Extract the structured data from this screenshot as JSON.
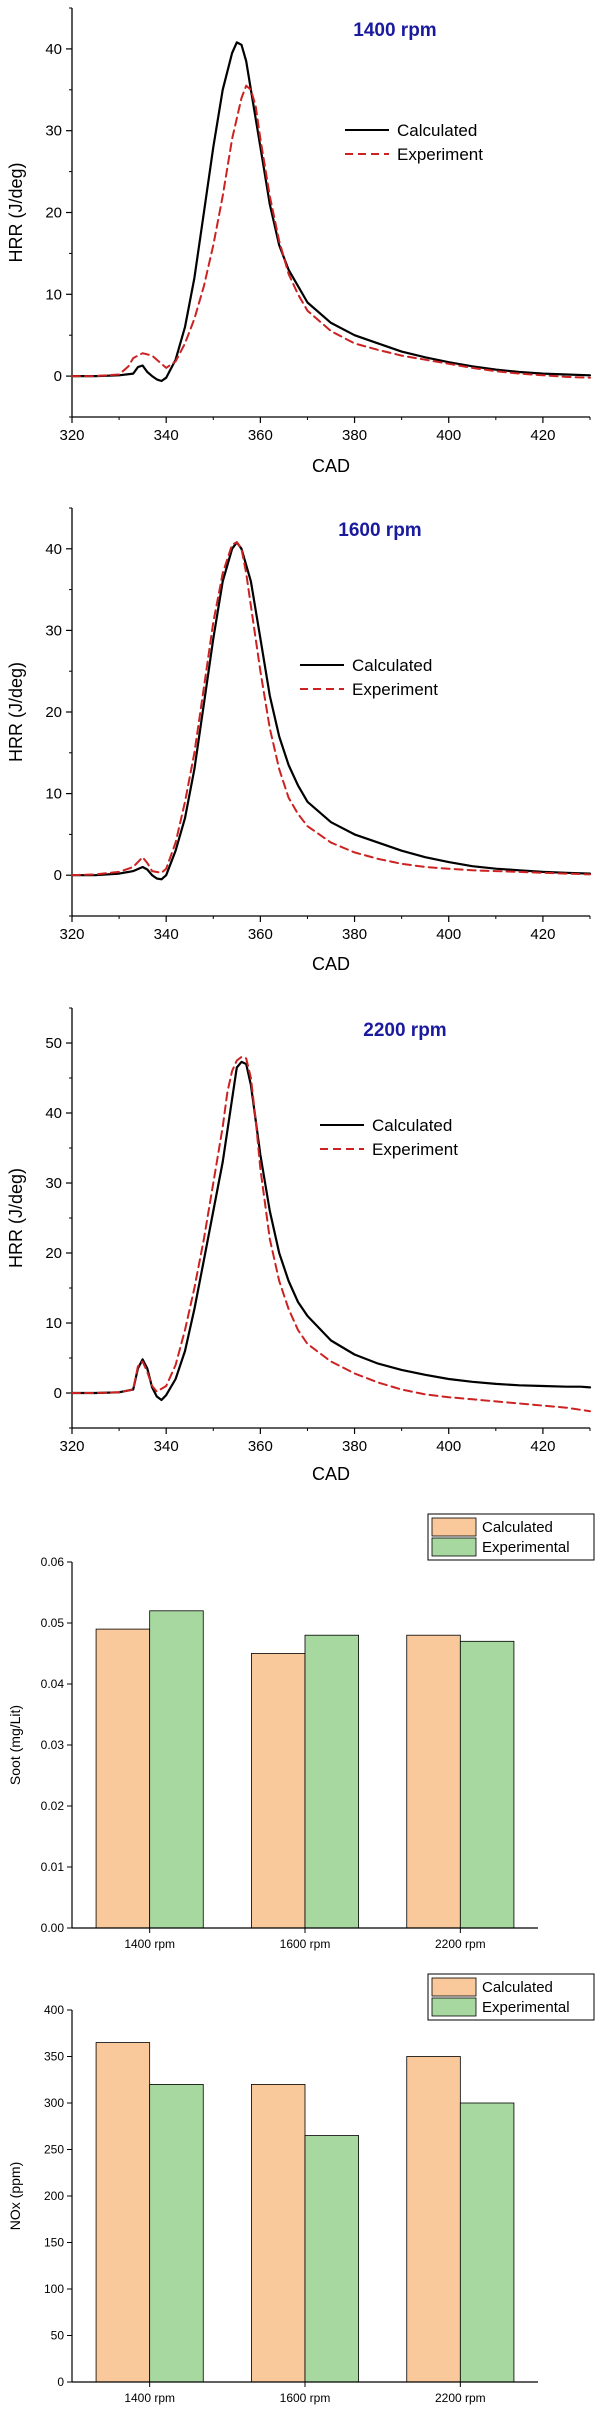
{
  "chart_data": [
    {
      "type": "line",
      "title": "1400 rpm",
      "xlabel": "CAD",
      "ylabel": "HRR (J/deg)",
      "xlim": [
        320,
        430
      ],
      "ylim": [
        -5,
        45
      ],
      "xticks": [
        320,
        340,
        360,
        380,
        400,
        420
      ],
      "yticks": [
        0,
        10,
        20,
        30,
        40
      ],
      "legend_position": "upper-right",
      "series": [
        {
          "name": "Calculated",
          "style": "solid",
          "color": "#000000",
          "points": [
            [
              320,
              0
            ],
            [
              325,
              0
            ],
            [
              330,
              0.1
            ],
            [
              333,
              0.3
            ],
            [
              334,
              1.1
            ],
            [
              335,
              1.3
            ],
            [
              336,
              0.5
            ],
            [
              337,
              0
            ],
            [
              338,
              -0.4
            ],
            [
              339,
              -0.6
            ],
            [
              340,
              -0.2
            ],
            [
              342,
              2
            ],
            [
              344,
              6
            ],
            [
              346,
              12
            ],
            [
              348,
              20
            ],
            [
              350,
              28
            ],
            [
              352,
              35
            ],
            [
              354,
              39.5
            ],
            [
              355,
              40.8
            ],
            [
              356,
              40.5
            ],
            [
              357,
              38.5
            ],
            [
              358,
              35
            ],
            [
              360,
              28
            ],
            [
              362,
              21
            ],
            [
              364,
              16
            ],
            [
              366,
              13
            ],
            [
              368,
              11
            ],
            [
              370,
              9
            ],
            [
              375,
              6.5
            ],
            [
              380,
              5
            ],
            [
              385,
              4
            ],
            [
              390,
              3
            ],
            [
              395,
              2.3
            ],
            [
              400,
              1.7
            ],
            [
              405,
              1.2
            ],
            [
              410,
              0.8
            ],
            [
              415,
              0.5
            ],
            [
              420,
              0.3
            ],
            [
              425,
              0.2
            ],
            [
              430,
              0.1
            ]
          ]
        },
        {
          "name": "Experiment",
          "style": "dashed",
          "color": "#cc2222",
          "points": [
            [
              320,
              0
            ],
            [
              325,
              0
            ],
            [
              330,
              0.2
            ],
            [
              332,
              1.2
            ],
            [
              333,
              2.2
            ],
            [
              335,
              2.8
            ],
            [
              337,
              2.5
            ],
            [
              339,
              1.5
            ],
            [
              340,
              1
            ],
            [
              342,
              1.8
            ],
            [
              344,
              4
            ],
            [
              346,
              7
            ],
            [
              348,
              11
            ],
            [
              350,
              16
            ],
            [
              352,
              22
            ],
            [
              354,
              29
            ],
            [
              356,
              34
            ],
            [
              357,
              35.5
            ],
            [
              358,
              35
            ],
            [
              359,
              33
            ],
            [
              360,
              29
            ],
            [
              362,
              22
            ],
            [
              364,
              16.5
            ],
            [
              366,
              12.5
            ],
            [
              368,
              10
            ],
            [
              370,
              8
            ],
            [
              375,
              5.5
            ],
            [
              380,
              4
            ],
            [
              385,
              3.2
            ],
            [
              390,
              2.5
            ],
            [
              395,
              2
            ],
            [
              400,
              1.5
            ],
            [
              405,
              1
            ],
            [
              410,
              0.6
            ],
            [
              415,
              0.3
            ],
            [
              420,
              0.1
            ],
            [
              425,
              -0.1
            ],
            [
              430,
              -0.2
            ]
          ]
        }
      ]
    },
    {
      "type": "line",
      "title": "1600 rpm",
      "xlabel": "CAD",
      "ylabel": "HRR (J/deg)",
      "xlim": [
        320,
        430
      ],
      "ylim": [
        -5,
        45
      ],
      "xticks": [
        320,
        340,
        360,
        380,
        400,
        420
      ],
      "yticks": [
        0,
        10,
        20,
        30,
        40
      ],
      "legend_position": "right",
      "series": [
        {
          "name": "Calculated",
          "style": "solid",
          "color": "#000000",
          "points": [
            [
              320,
              0
            ],
            [
              325,
              0
            ],
            [
              330,
              0.2
            ],
            [
              333,
              0.5
            ],
            [
              335,
              1
            ],
            [
              336,
              0.7
            ],
            [
              337,
              0
            ],
            [
              338,
              -0.4
            ],
            [
              339,
              -0.5
            ],
            [
              340,
              0
            ],
            [
              342,
              3
            ],
            [
              344,
              7
            ],
            [
              346,
              13
            ],
            [
              348,
              21
            ],
            [
              350,
              29
            ],
            [
              352,
              36
            ],
            [
              354,
              40
            ],
            [
              355,
              40.8
            ],
            [
              356,
              40
            ],
            [
              358,
              36
            ],
            [
              360,
              29
            ],
            [
              362,
              22
            ],
            [
              364,
              17
            ],
            [
              366,
              13.5
            ],
            [
              368,
              11
            ],
            [
              370,
              9
            ],
            [
              375,
              6.5
            ],
            [
              380,
              5
            ],
            [
              385,
              4
            ],
            [
              390,
              3
            ],
            [
              395,
              2.2
            ],
            [
              400,
              1.6
            ],
            [
              405,
              1.1
            ],
            [
              410,
              0.8
            ],
            [
              415,
              0.6
            ],
            [
              420,
              0.4
            ],
            [
              425,
              0.3
            ],
            [
              430,
              0.2
            ]
          ]
        },
        {
          "name": "Experiment",
          "style": "dashed",
          "color": "#cc2222",
          "points": [
            [
              320,
              0
            ],
            [
              325,
              0.1
            ],
            [
              330,
              0.4
            ],
            [
              333,
              1
            ],
            [
              335,
              2.2
            ],
            [
              336,
              1.5
            ],
            [
              337,
              0.5
            ],
            [
              339,
              0.3
            ],
            [
              340,
              0.8
            ],
            [
              342,
              4
            ],
            [
              344,
              9
            ],
            [
              346,
              15
            ],
            [
              348,
              23
            ],
            [
              350,
              31
            ],
            [
              352,
              37
            ],
            [
              354,
              40.5
            ],
            [
              355,
              40.8
            ],
            [
              356,
              40
            ],
            [
              357,
              37
            ],
            [
              358,
              33
            ],
            [
              360,
              25
            ],
            [
              362,
              18
            ],
            [
              364,
              13
            ],
            [
              366,
              9.5
            ],
            [
              368,
              7.5
            ],
            [
              370,
              6
            ],
            [
              375,
              4
            ],
            [
              380,
              2.8
            ],
            [
              385,
              2
            ],
            [
              390,
              1.4
            ],
            [
              395,
              1
            ],
            [
              400,
              0.8
            ],
            [
              405,
              0.6
            ],
            [
              410,
              0.5
            ],
            [
              415,
              0.4
            ],
            [
              420,
              0.3
            ],
            [
              425,
              0.2
            ],
            [
              430,
              0.1
            ]
          ]
        }
      ]
    },
    {
      "type": "line",
      "title": "2200 rpm",
      "xlabel": "CAD",
      "ylabel": "HRR (J/deg)",
      "xlim": [
        320,
        430
      ],
      "ylim": [
        -5,
        55
      ],
      "xticks": [
        320,
        340,
        360,
        380,
        400,
        420
      ],
      "yticks": [
        0,
        10,
        20,
        30,
        40,
        50
      ],
      "legend_position": "right",
      "series": [
        {
          "name": "Calculated",
          "style": "solid",
          "color": "#000000",
          "points": [
            [
              320,
              0
            ],
            [
              325,
              0
            ],
            [
              330,
              0.1
            ],
            [
              333,
              0.5
            ],
            [
              334,
              3.5
            ],
            [
              335,
              4.8
            ],
            [
              336,
              3.5
            ],
            [
              337,
              0.8
            ],
            [
              338,
              -0.5
            ],
            [
              339,
              -1
            ],
            [
              340,
              -0.3
            ],
            [
              342,
              2
            ],
            [
              344,
              6
            ],
            [
              346,
              12
            ],
            [
              348,
              19
            ],
            [
              350,
              26
            ],
            [
              352,
              33
            ],
            [
              354,
              42
            ],
            [
              355,
              46.5
            ],
            [
              356,
              47.3
            ],
            [
              357,
              47
            ],
            [
              358,
              44
            ],
            [
              360,
              34
            ],
            [
              362,
              26
            ],
            [
              364,
              20
            ],
            [
              366,
              16
            ],
            [
              368,
              13
            ],
            [
              370,
              11
            ],
            [
              375,
              7.5
            ],
            [
              380,
              5.5
            ],
            [
              385,
              4.2
            ],
            [
              390,
              3.3
            ],
            [
              395,
              2.6
            ],
            [
              400,
              2
            ],
            [
              405,
              1.6
            ],
            [
              410,
              1.3
            ],
            [
              415,
              1.1
            ],
            [
              420,
              1
            ],
            [
              425,
              0.9
            ],
            [
              428,
              0.9
            ],
            [
              430,
              0.8
            ]
          ]
        },
        {
          "name": "Experiment",
          "style": "dashed",
          "color": "#cc2222",
          "points": [
            [
              320,
              0
            ],
            [
              325,
              0
            ],
            [
              330,
              0.1
            ],
            [
              333,
              0.5
            ],
            [
              334,
              3.8
            ],
            [
              335,
              4.5
            ],
            [
              336,
              3
            ],
            [
              337,
              1
            ],
            [
              338,
              0.2
            ],
            [
              340,
              1
            ],
            [
              342,
              4
            ],
            [
              344,
              9
            ],
            [
              346,
              15
            ],
            [
              348,
              22
            ],
            [
              350,
              30
            ],
            [
              352,
              38
            ],
            [
              353,
              43
            ],
            [
              354,
              46
            ],
            [
              355,
              47.5
            ],
            [
              356,
              48
            ],
            [
              357,
              47.8
            ],
            [
              358,
              45
            ],
            [
              359,
              39
            ],
            [
              360,
              32
            ],
            [
              362,
              22
            ],
            [
              364,
              16
            ],
            [
              366,
              12
            ],
            [
              368,
              9
            ],
            [
              370,
              7
            ],
            [
              375,
              4.5
            ],
            [
              380,
              2.8
            ],
            [
              385,
              1.5
            ],
            [
              390,
              0.5
            ],
            [
              395,
              -0.2
            ],
            [
              400,
              -0.6
            ],
            [
              405,
              -0.9
            ],
            [
              410,
              -1.2
            ],
            [
              415,
              -1.5
            ],
            [
              420,
              -1.8
            ],
            [
              425,
              -2.1
            ],
            [
              430,
              -2.6
            ]
          ]
        }
      ]
    },
    {
      "type": "bar",
      "ylabel": "Soot (mg/Lit)",
      "categories": [
        "1400 rpm",
        "1600 rpm",
        "2200 rpm"
      ],
      "ylim": [
        0,
        0.06
      ],
      "yticks": [
        "0.00",
        "0.01",
        "0.02",
        "0.03",
        "0.04",
        "0.05",
        "0.06"
      ],
      "legend_position": "top-right",
      "series": [
        {
          "name": "Calculated",
          "color": "#f9c89b",
          "values": [
            0.049,
            0.045,
            0.048
          ]
        },
        {
          "name": "Experimental",
          "color": "#a7d8a0",
          "values": [
            0.052,
            0.048,
            0.047
          ]
        }
      ]
    },
    {
      "type": "bar",
      "ylabel": "NOx (ppm)",
      "categories": [
        "1400 rpm",
        "1600 rpm",
        "2200 rpm"
      ],
      "ylim": [
        0,
        400
      ],
      "yticks": [
        "0",
        "50",
        "100",
        "150",
        "200",
        "250",
        "300",
        "350",
        "400"
      ],
      "legend_position": "top-right",
      "series": [
        {
          "name": "Calculated",
          "color": "#f9c89b",
          "values": [
            365,
            320,
            350
          ]
        },
        {
          "name": "Experimental",
          "color": "#a7d8a0",
          "values": [
            320,
            265,
            300
          ]
        }
      ]
    }
  ]
}
